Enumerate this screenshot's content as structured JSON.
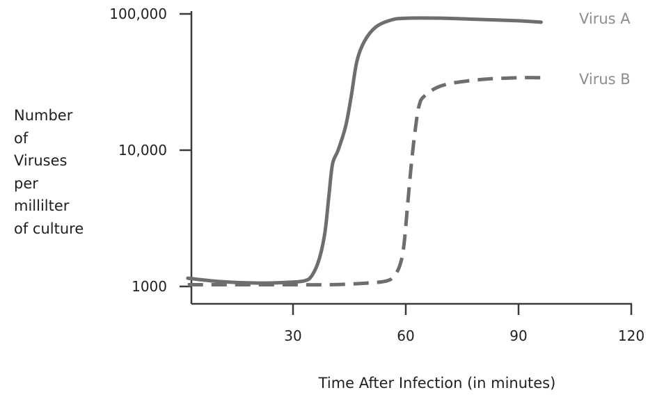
{
  "chart_data": {
    "type": "line",
    "title": "",
    "xlabel": "Time After Infection (in minutes)",
    "ylabel_lines": [
      "Number",
      "of",
      "Viruses",
      "per",
      "millilter",
      "of culture"
    ],
    "y_scale": "log",
    "xlim": [
      0,
      120
    ],
    "ylim": [
      900,
      100000
    ],
    "x_ticks": [
      {
        "value": 30,
        "label": "30"
      },
      {
        "value": 60,
        "label": "60"
      },
      {
        "value": 90,
        "label": "90"
      },
      {
        "value": 120,
        "label": "120"
      }
    ],
    "y_ticks": [
      {
        "value": 1000,
        "label": "1000"
      },
      {
        "value": 10000,
        "label": "10,000"
      },
      {
        "value": 100000,
        "label": "100,000"
      }
    ],
    "grid": false,
    "legend": "right",
    "series": [
      {
        "name": "Virus A",
        "style": "solid",
        "color": "#6e6e6e",
        "points": [
          [
            2,
            1150
          ],
          [
            10,
            1090
          ],
          [
            20,
            1060
          ],
          [
            28,
            1070
          ],
          [
            33,
            1100
          ],
          [
            35,
            1200
          ],
          [
            37,
            1600
          ],
          [
            38.5,
            2500
          ],
          [
            39.5,
            4500
          ],
          [
            40.5,
            7900
          ],
          [
            42,
            10000
          ],
          [
            44,
            15000
          ],
          [
            45.5,
            25000
          ],
          [
            47,
            45000
          ],
          [
            49,
            63000
          ],
          [
            52,
            80000
          ],
          [
            56,
            90000
          ],
          [
            60,
            93000
          ],
          [
            70,
            93000
          ],
          [
            80,
            91000
          ],
          [
            90,
            89000
          ],
          [
            96,
            87000
          ]
        ]
      },
      {
        "name": "Virus B",
        "style": "dashed",
        "color": "#6e6e6e",
        "points": [
          [
            2,
            1030
          ],
          [
            15,
            1030
          ],
          [
            30,
            1030
          ],
          [
            40,
            1030
          ],
          [
            50,
            1060
          ],
          [
            55,
            1100
          ],
          [
            57,
            1200
          ],
          [
            58.5,
            1450
          ],
          [
            59.5,
            2000
          ],
          [
            60.5,
            4000
          ],
          [
            61.5,
            8000
          ],
          [
            62.5,
            14000
          ],
          [
            63.5,
            21000
          ],
          [
            65,
            25000
          ],
          [
            70,
            30000
          ],
          [
            80,
            33000
          ],
          [
            90,
            34000
          ],
          [
            96,
            34000
          ]
        ]
      }
    ]
  }
}
